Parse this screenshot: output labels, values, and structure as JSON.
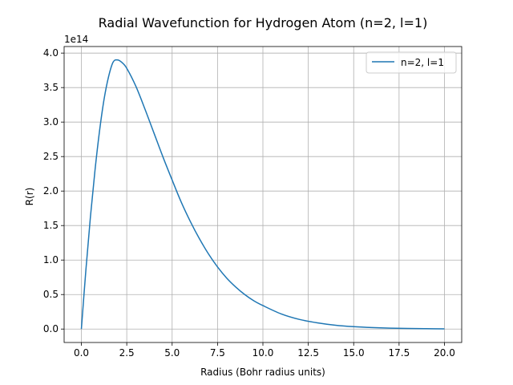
{
  "chart_data": {
    "type": "line",
    "title": "Radial Wavefunction for Hydrogen Atom (n=2, l=1)",
    "xlabel": "Radius (Bohr radius units)",
    "ylabel": "R(r)",
    "y_scale_label": "1e14",
    "xlim": [
      -0.95,
      20.95
    ],
    "ylim": [
      -0.195,
      4.095
    ],
    "x_ticks": [
      0.0,
      2.5,
      5.0,
      7.5,
      10.0,
      12.5,
      15.0,
      17.5,
      20.0
    ],
    "x_tick_labels": [
      "0.0",
      "2.5",
      "5.0",
      "7.5",
      "10.0",
      "12.5",
      "15.0",
      "17.5",
      "20.0"
    ],
    "y_ticks": [
      0.0,
      0.5,
      1.0,
      1.5,
      2.0,
      2.5,
      3.0,
      3.5,
      4.0
    ],
    "y_tick_labels": [
      "0.0",
      "0.5",
      "1.0",
      "1.5",
      "2.0",
      "2.5",
      "3.0",
      "3.5",
      "4.0"
    ],
    "grid": true,
    "legend_position": "top-right",
    "series": [
      {
        "name": "n=2, l=1",
        "color": "#1f77b4",
        "x": [
          0,
          0.25,
          0.5,
          0.75,
          1.0,
          1.25,
          1.5,
          1.75,
          2.0,
          2.25,
          2.5,
          3.0,
          3.5,
          4.0,
          4.5,
          5.0,
          5.5,
          6.0,
          6.5,
          7.0,
          7.5,
          8.0,
          8.5,
          9.0,
          9.5,
          10.0,
          11.0,
          12.0,
          13.0,
          14.0,
          15.0,
          16.0,
          17.0,
          18.0,
          19.0,
          20.0
        ],
        "y": [
          0,
          0.86,
          1.63,
          2.3,
          2.87,
          3.33,
          3.66,
          3.87,
          3.9,
          3.86,
          3.78,
          3.52,
          3.19,
          2.84,
          2.49,
          2.16,
          1.84,
          1.56,
          1.31,
          1.09,
          0.9,
          0.74,
          0.61,
          0.5,
          0.41,
          0.34,
          0.22,
          0.14,
          0.09,
          0.055,
          0.034,
          0.021,
          0.013,
          0.008,
          0.005,
          0.003
        ]
      }
    ]
  }
}
